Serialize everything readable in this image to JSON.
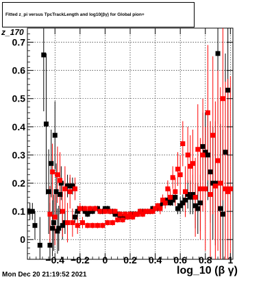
{
  "title": "Fitted z_pi versus TpcTrackLength and log10(βγ) for Global pion+",
  "timestamp": "Mon Dec 20 21:19:52 2021",
  "ylabel": "z_170",
  "xlabel": "log_10 (β γ)",
  "chart_data": {
    "type": "scatter",
    "xlim": [
      -0.62,
      1.02
    ],
    "ylim": [
      -0.07,
      0.75
    ],
    "xticks": [
      -0.4,
      -0.2,
      0,
      0.2,
      0.4,
      0.6,
      0.8,
      1
    ],
    "xtick_labels": [
      "−0.4",
      "−0.2",
      "0",
      "0.2",
      "0.4",
      "0.6",
      "0.8",
      "1"
    ],
    "yticks": [
      0,
      0.1,
      0.2,
      0.3,
      0.4,
      0.5,
      0.6,
      0.7
    ],
    "ytick_labels": [
      "0",
      "0.1",
      "0.2",
      "0.3",
      "0.4",
      "0.5",
      "0.6",
      "0.7"
    ],
    "grid": true,
    "series": [
      {
        "color": "#000000",
        "x": [
          -0.6,
          -0.58,
          -0.56,
          -0.52,
          -0.49,
          -0.47,
          -0.45,
          -0.44,
          -0.43,
          -0.42,
          -0.41,
          -0.4,
          -0.39,
          -0.38,
          -0.37,
          -0.36,
          -0.35,
          -0.34,
          -0.32,
          -0.3,
          -0.28,
          -0.26,
          -0.24,
          -0.22,
          -0.2,
          -0.18,
          -0.16,
          -0.14,
          -0.12,
          -0.1,
          -0.08,
          -0.06,
          -0.04,
          -0.02,
          0.0,
          0.02,
          0.04,
          0.06,
          0.08,
          0.1,
          0.12,
          0.14,
          0.16,
          0.18,
          0.2,
          0.22,
          0.24,
          0.26,
          0.28,
          0.3,
          0.32,
          0.34,
          0.36,
          0.38,
          0.4,
          0.42,
          0.44,
          0.46,
          0.48,
          0.5,
          0.52,
          0.54,
          0.56,
          0.58,
          0.6,
          0.62,
          0.64,
          0.66,
          0.68,
          0.7,
          0.72,
          0.74,
          0.76,
          0.78,
          0.8,
          0.82,
          0.84,
          0.86,
          0.88,
          0.9,
          0.92,
          0.94,
          0.96,
          0.98
        ],
        "y": [
          0.1,
          0.1,
          0.05,
          -0.02,
          0.655,
          0.41,
          0.17,
          -0.02,
          0.27,
          0.04,
          0.06,
          0.37,
          0.17,
          0.03,
          0.04,
          0.16,
          0.2,
          0.05,
          0.06,
          0.19,
          0.19,
          0.19,
          0.08,
          0.1,
          0.11,
          0.11,
          0.1,
          0.09,
          0.1,
          0.1,
          0.11,
          0.11,
          0.1,
          0.1,
          0.11,
          0.11,
          0.1,
          0.1,
          0.09,
          0.09,
          0.08,
          0.08,
          0.08,
          0.08,
          0.09,
          0.09,
          0.09,
          0.09,
          0.1,
          0.1,
          0.1,
          0.1,
          0.1,
          0.11,
          0.11,
          0.11,
          0.12,
          0.13,
          0.13,
          0.14,
          0.13,
          0.14,
          0.15,
          0.11,
          0.12,
          0.13,
          0.14,
          0.16,
          0.15,
          0.16,
          0.12,
          0.11,
          0.13,
          0.33,
          0.31,
          0.3,
          0.24,
          0.2,
          0.2,
          0.66,
          0.11,
          0.09,
          0.31,
          0.53
        ],
        "y_err": [
          0.03,
          0.03,
          0.05,
          0.1,
          0.2,
          0.25,
          0.15,
          0.15,
          0.12,
          0.1,
          0.1,
          0.12,
          0.1,
          0.08,
          0.08,
          0.07,
          0.06,
          0.05,
          0.04,
          0.04,
          0.03,
          0.03,
          0.02,
          0.02,
          0.01,
          0.01,
          0.01,
          0.01,
          0.01,
          0.01,
          0.01,
          0.01,
          0.01,
          0.01,
          0.01,
          0.01,
          0.01,
          0.01,
          0.01,
          0.01,
          0.01,
          0.01,
          0.01,
          0.01,
          0.01,
          0.01,
          0.01,
          0.01,
          0.01,
          0.01,
          0.01,
          0.01,
          0.01,
          0.01,
          0.01,
          0.01,
          0.01,
          0.01,
          0.01,
          0.01,
          0.01,
          0.02,
          0.02,
          0.02,
          0.03,
          0.03,
          0.04,
          0.05,
          0.06,
          0.07,
          0.08,
          0.09,
          0.1,
          0.12,
          0.14,
          0.16,
          0.18,
          0.2,
          0.22,
          0.25,
          0.3,
          0.3,
          0.35,
          0.35
        ]
      },
      {
        "color": "#ff0000",
        "x": [
          -0.44,
          -0.42,
          -0.4,
          -0.38,
          -0.36,
          -0.34,
          -0.32,
          -0.3,
          -0.28,
          -0.26,
          -0.24,
          -0.22,
          -0.2,
          -0.18,
          -0.16,
          -0.14,
          -0.12,
          -0.1,
          -0.08,
          -0.06,
          -0.04,
          -0.02,
          0.0,
          0.02,
          0.04,
          0.06,
          0.08,
          0.1,
          0.12,
          0.14,
          0.16,
          0.18,
          0.2,
          0.22,
          0.24,
          0.26,
          0.28,
          0.3,
          0.32,
          0.34,
          0.36,
          0.38,
          0.4,
          0.42,
          0.44,
          0.46,
          0.48,
          0.5,
          0.52,
          0.54,
          0.56,
          0.58,
          0.6,
          0.62,
          0.64,
          0.66,
          0.68,
          0.7,
          0.72,
          0.74,
          0.76,
          0.78,
          0.8,
          0.82,
          0.84,
          0.86,
          0.88,
          0.9,
          0.92,
          0.94,
          0.96,
          0.98,
          1.0
        ],
        "y": [
          0.09,
          0.24,
          0.08,
          0.23,
          0.21,
          0.1,
          0.18,
          0.06,
          0.17,
          0.06,
          0.18,
          0.05,
          0.11,
          0.06,
          0.11,
          0.05,
          0.11,
          0.05,
          0.11,
          0.05,
          0.1,
          0.05,
          0.1,
          0.06,
          0.1,
          0.06,
          0.1,
          0.07,
          0.09,
          0.07,
          0.09,
          0.08,
          0.09,
          0.08,
          0.09,
          0.09,
          0.1,
          0.09,
          0.1,
          0.1,
          0.1,
          0.1,
          0.11,
          0.12,
          0.11,
          0.14,
          0.13,
          0.18,
          0.15,
          0.22,
          0.17,
          0.25,
          0.23,
          0.34,
          0.17,
          0.3,
          0.26,
          0.27,
          0.15,
          0.32,
          0.18,
          0.3,
          0.18,
          0.45,
          0.16,
          0.37,
          0.19,
          0.28,
          0.2,
          0.5,
          0.18,
          0.17,
          0.18
        ],
        "y_err": [
          0.1,
          0.1,
          0.1,
          0.1,
          0.1,
          0.09,
          0.08,
          0.07,
          0.06,
          0.05,
          0.04,
          0.03,
          0.02,
          0.02,
          0.01,
          0.01,
          0.01,
          0.01,
          0.01,
          0.01,
          0.01,
          0.01,
          0.01,
          0.01,
          0.01,
          0.01,
          0.01,
          0.01,
          0.01,
          0.01,
          0.01,
          0.01,
          0.01,
          0.01,
          0.01,
          0.01,
          0.01,
          0.01,
          0.01,
          0.01,
          0.01,
          0.01,
          0.01,
          0.01,
          0.02,
          0.02,
          0.02,
          0.03,
          0.03,
          0.04,
          0.05,
          0.06,
          0.07,
          0.08,
          0.09,
          0.1,
          0.11,
          0.12,
          0.14,
          0.16,
          0.18,
          0.2,
          0.22,
          0.24,
          0.26,
          0.28,
          0.3,
          0.32,
          0.34,
          0.36,
          0.38,
          0.4,
          0.4
        ]
      }
    ]
  }
}
